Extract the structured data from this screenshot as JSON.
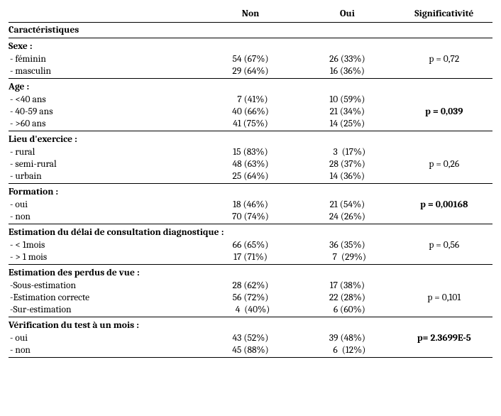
{
  "headers": {
    "col1": "",
    "col2": "Non",
    "col3": "Oui",
    "col4": "Significativité"
  },
  "caracteristiques_label": "Caractéristiques",
  "sections": [
    {
      "title": "Sexe :",
      "sig": "p =   0,72",
      "sig_bold": false,
      "rows": [
        {
          "label": "- féminin",
          "non": "54 (67%)",
          "oui": "26 (33%)"
        },
        {
          "label": "- masculin",
          "non": "29 (64%)",
          "oui": "16 (36%)"
        }
      ]
    },
    {
      "title": "Age :",
      "sig": "p = 0,039",
      "sig_bold": true,
      "rows": [
        {
          "label": "- <40 ans",
          "non": "  7 (41%)",
          "oui": "10 (59%)"
        },
        {
          "label": "- 40-59 ans",
          "non": "40 (66%)",
          "oui": "21 (34%)"
        },
        {
          "label": "- >60 ans",
          "non": "41 (75%)",
          "oui": "14 (25%)"
        }
      ]
    },
    {
      "title": "Lieu d'exercice :",
      "sig": "p = 0,26",
      "sig_bold": false,
      "rows": [
        {
          "label": "- rural",
          "non": "15 (83%)",
          "oui": "  3  (17%)"
        },
        {
          "label": "- semi-rural",
          "non": "48 (63%)",
          "oui": "28 (37%)"
        },
        {
          "label": "- urbain",
          "non": "25 (64%)",
          "oui": "14 (36%)"
        }
      ]
    },
    {
      "title": "Formation :",
      "sig": "p =  0,00168",
      "sig_bold": true,
      "rows": [
        {
          "label": "- oui",
          "non": "18 (46%)",
          "oui": "21 (54%)"
        },
        {
          "label": "- non",
          "non": "70 (74%)",
          "oui": "24 (26%)"
        }
      ]
    },
    {
      "title": "Estimation du délai de consultation diagnostique :",
      "sig": "p = 0,56",
      "sig_bold": false,
      "title_inline": true,
      "rows": [
        {
          "label": " - < 1mois",
          "non": "66 (65%)",
          "oui": "36 (35%)"
        },
        {
          "label": " -  > 1 mois",
          "non": "17 (71%)",
          "oui": "  7  (29%)"
        }
      ]
    },
    {
      "title": "Estimation des perdus de vue :",
      "sig": "p = 0,101",
      "sig_bold": false,
      "rows": [
        {
          "label": "-Sous-estimation",
          "non": "28 (62%)",
          "oui": "17 (38%)"
        },
        {
          "label": "-Estimation correcte",
          "non": "56 (72%)",
          "oui": "22 (28%)"
        },
        {
          "label": "-Sur-estimation",
          "non": "  4  (40%)",
          "oui": "  6 (60%)"
        }
      ]
    },
    {
      "title": "Vérification du test à un mois :",
      "title_wrap": true,
      "sig": "p= 2.3699E-5",
      "sig_bold": true,
      "rows": [
        {
          "label": "- oui",
          "non": "43 (52%)",
          "oui": "39 (48%)"
        },
        {
          "label": "- non",
          "non": "45 (88%)",
          "oui": "  6  (12%)"
        }
      ]
    }
  ]
}
